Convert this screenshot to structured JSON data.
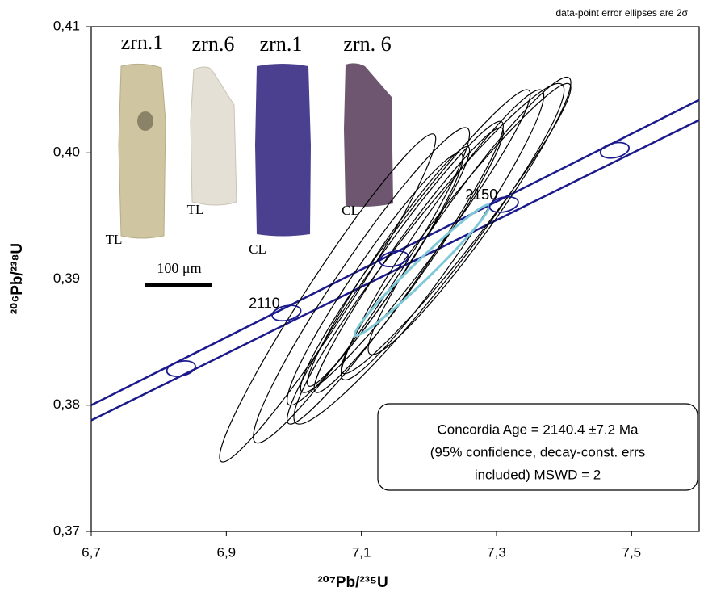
{
  "chart_data": {
    "type": "concordia",
    "x_label": "²⁰⁷Pb/²³⁵U",
    "y_label": "²⁰⁶Pb/²³⁸U",
    "annotation": "data-point error ellipses are 2σ",
    "result_box": [
      "Concordia Age = 2140.4 ±7.2 Ma",
      "(95% confidence, decay-const. errs",
      "included) MSWD = 2"
    ],
    "xlim": [
      6.7,
      7.6
    ],
    "ylim": [
      0.37,
      0.41
    ],
    "xticks": [
      {
        "value": 6.7,
        "label": "6,7"
      },
      {
        "value": 6.9,
        "label": "6,9"
      },
      {
        "value": 7.1,
        "label": "7,1"
      },
      {
        "value": 7.3,
        "label": "7,3"
      },
      {
        "value": 7.5,
        "label": "7,5"
      }
    ],
    "yticks": [
      {
        "value": 0.37,
        "label": "0,37"
      },
      {
        "value": 0.38,
        "label": "0,38"
      },
      {
        "value": 0.39,
        "label": "0,39"
      },
      {
        "value": 0.4,
        "label": "0,40"
      },
      {
        "value": 0.41,
        "label": "0,41"
      }
    ],
    "concordia_color": "#1a1a8c",
    "concordia_band": {
      "upper": {
        "x": [
          6.7,
          7.6
        ],
        "y": [
          0.38,
          0.4042
        ]
      },
      "lower": {
        "x": [
          6.7,
          7.6
        ],
        "y": [
          0.3788,
          0.4026
        ]
      }
    },
    "concordia_ages": {
      "x": [
        6.833,
        6.989,
        7.148,
        7.311,
        7.475
      ],
      "y": [
        0.3829,
        0.3873,
        0.3916,
        0.3959,
        0.4002
      ],
      "labels": [
        null,
        2110,
        null,
        2150,
        null
      ]
    },
    "data_points": {
      "color": "#000000",
      "x": [
        7.05,
        7.18,
        7.22,
        7.15,
        7.2,
        7.12,
        7.26,
        7.17,
        7.1,
        7.24,
        7.14
      ],
      "y": [
        0.3885,
        0.393,
        0.3935,
        0.3905,
        0.392,
        0.39,
        0.395,
        0.3915,
        0.3895,
        0.394,
        0.391
      ],
      "x_err": [
        0.16,
        0.17,
        0.15,
        0.16,
        0.2,
        0.13,
        0.15,
        0.14,
        0.16,
        0.17,
        0.12
      ],
      "y_err": [
        0.013,
        0.012,
        0.0115,
        0.012,
        0.0135,
        0.01,
        0.011,
        0.0105,
        0.0125,
        0.0115,
        0.0095
      ],
      "rho": [
        0.97,
        0.97,
        0.96,
        0.97,
        0.96,
        0.96,
        0.96,
        0.97,
        0.96,
        0.97,
        0.97
      ]
    },
    "concordia_point": {
      "color": "#7ec8d8",
      "x": 7.19,
      "y": 0.3907,
      "x_err": 0.1,
      "y_err": 0.0052,
      "rho": 0.98
    },
    "inset": {
      "grains": [
        {
          "name": "zrn.1",
          "mode": "TL"
        },
        {
          "name": "zrn.6",
          "mode": "TL"
        },
        {
          "name": "zrn.1",
          "mode": "CL"
        },
        {
          "name": "zrn. 6",
          "mode": "CL"
        }
      ],
      "scale_label": "100 μm"
    }
  }
}
